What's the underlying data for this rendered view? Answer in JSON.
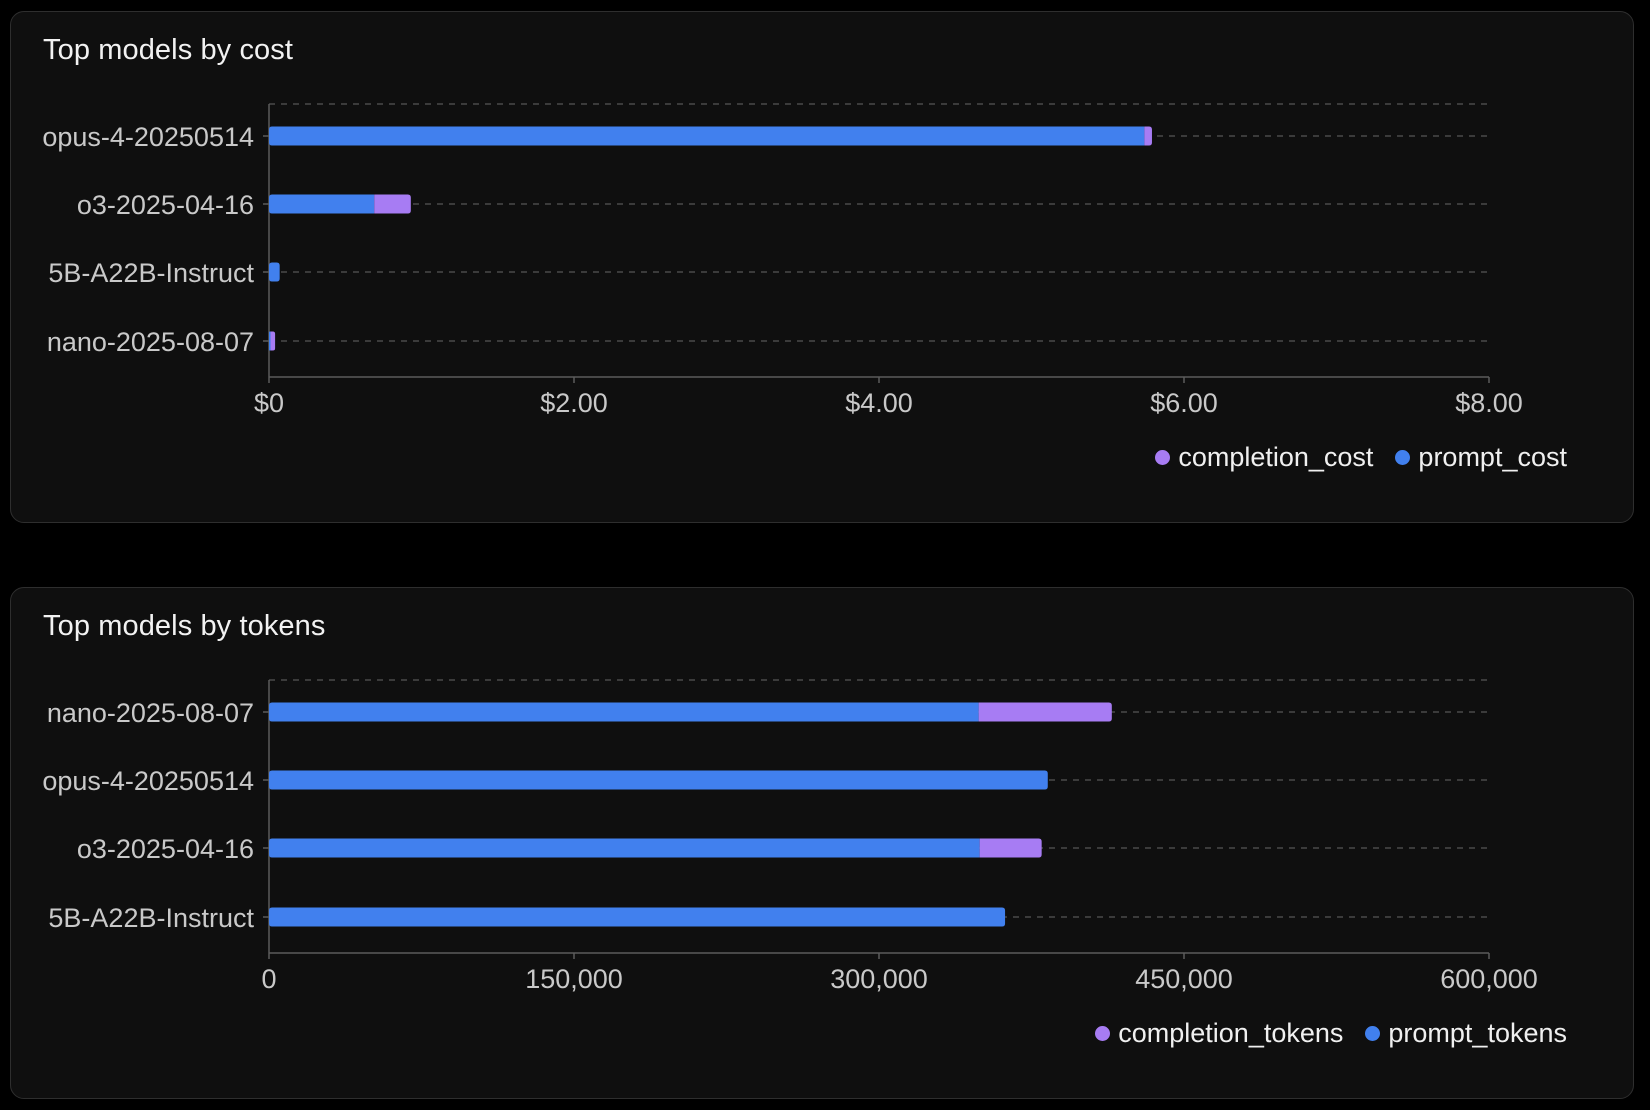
{
  "colors": {
    "prompt": "#4180ee",
    "completion": "#a77cf3",
    "grid": "#4a4a4a",
    "axis": "#5c5c5c"
  },
  "chart_data": [
    {
      "id": "cost",
      "type": "bar",
      "orientation": "horizontal",
      "stacked": true,
      "title": "Top models by cost",
      "categories": [
        "opus-4-20250514",
        "o3-2025-04-16",
        "5B-A22B-Instruct",
        "nano-2025-08-07"
      ],
      "series": [
        {
          "name": "prompt_cost",
          "color": "#4180ee",
          "values": [
            5.74,
            0.69,
            0.07,
            0.01
          ]
        },
        {
          "name": "completion_cost",
          "color": "#a77cf3",
          "values": [
            0.05,
            0.24,
            0.0,
            0.03
          ]
        }
      ],
      "xlim": [
        0,
        8
      ],
      "ticks": [
        0,
        2,
        4,
        6,
        8
      ],
      "tick_labels": [
        "$0",
        "$2.00",
        "$4.00",
        "$6.00",
        "$8.00"
      ],
      "legend": [
        "completion_cost",
        "prompt_cost"
      ],
      "legend_position": "bottom-right",
      "grid": "horizontal-dashed"
    },
    {
      "id": "tokens",
      "type": "bar",
      "orientation": "horizontal",
      "stacked": true,
      "title": "Top models by tokens",
      "categories": [
        "nano-2025-08-07",
        "opus-4-20250514",
        "o3-2025-04-16",
        "5B-A22B-Instruct"
      ],
      "series": [
        {
          "name": "prompt_tokens",
          "color": "#4180ee",
          "values": [
            349000,
            383000,
            349500,
            362000
          ]
        },
        {
          "name": "completion_tokens",
          "color": "#a77cf3",
          "values": [
            65500,
            0,
            30500,
            0
          ]
        }
      ],
      "xlim": [
        0,
        600000
      ],
      "ticks": [
        0,
        150000,
        300000,
        450000,
        600000
      ],
      "tick_labels": [
        "0",
        "150,000",
        "300,000",
        "450,000",
        "600,000"
      ],
      "legend": [
        "completion_tokens",
        "prompt_tokens"
      ],
      "legend_position": "bottom-right",
      "grid": "horizontal-dashed"
    }
  ]
}
